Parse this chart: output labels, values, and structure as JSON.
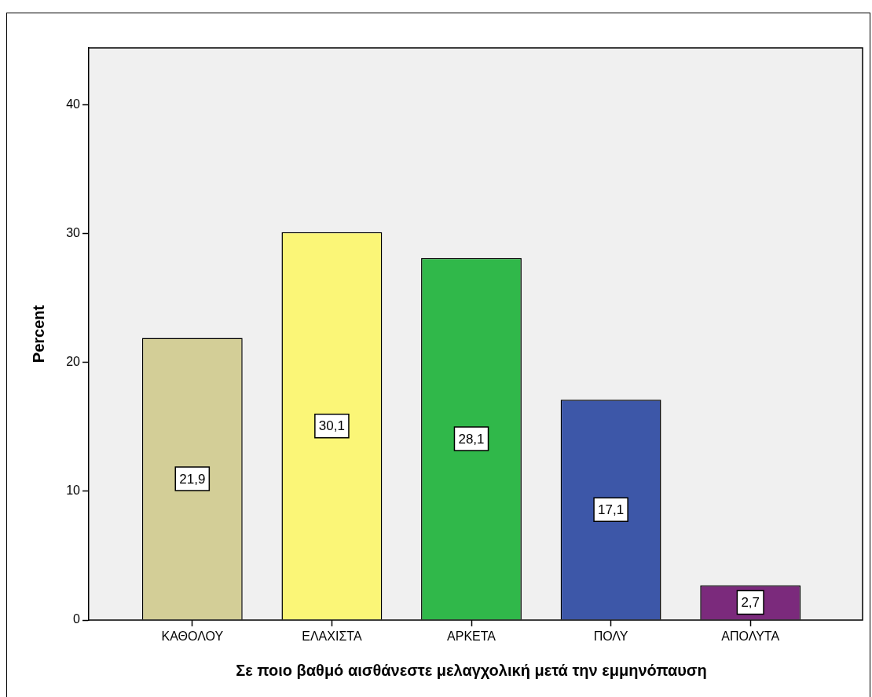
{
  "chart_data": {
    "type": "bar",
    "xlabel": "Σε ποιο βαθμό αισθάνεστε μελαγχολική μετά την εμμηνόπαυση",
    "ylabel": "Percent",
    "categories": [
      "ΚΑΘΟΛΟΥ",
      "ΕΛΑΧΙΣΤΑ",
      "ΑΡΚΕΤΑ",
      "ΠΟΛΥ",
      "ΑΠΟΛΥΤΑ"
    ],
    "values": [
      21.9,
      30.1,
      28.1,
      17.1,
      2.7
    ],
    "colors": [
      "#d3ce97",
      "#fbf677",
      "#30b84a",
      "#3d57a8",
      "#7b2a7c"
    ],
    "value_labels": [
      "21,9",
      "30,1",
      "28,1",
      "17,1",
      "2,7"
    ],
    "ylim": [
      0,
      44.4
    ],
    "yticks": [
      0,
      10,
      20,
      30,
      40
    ]
  }
}
